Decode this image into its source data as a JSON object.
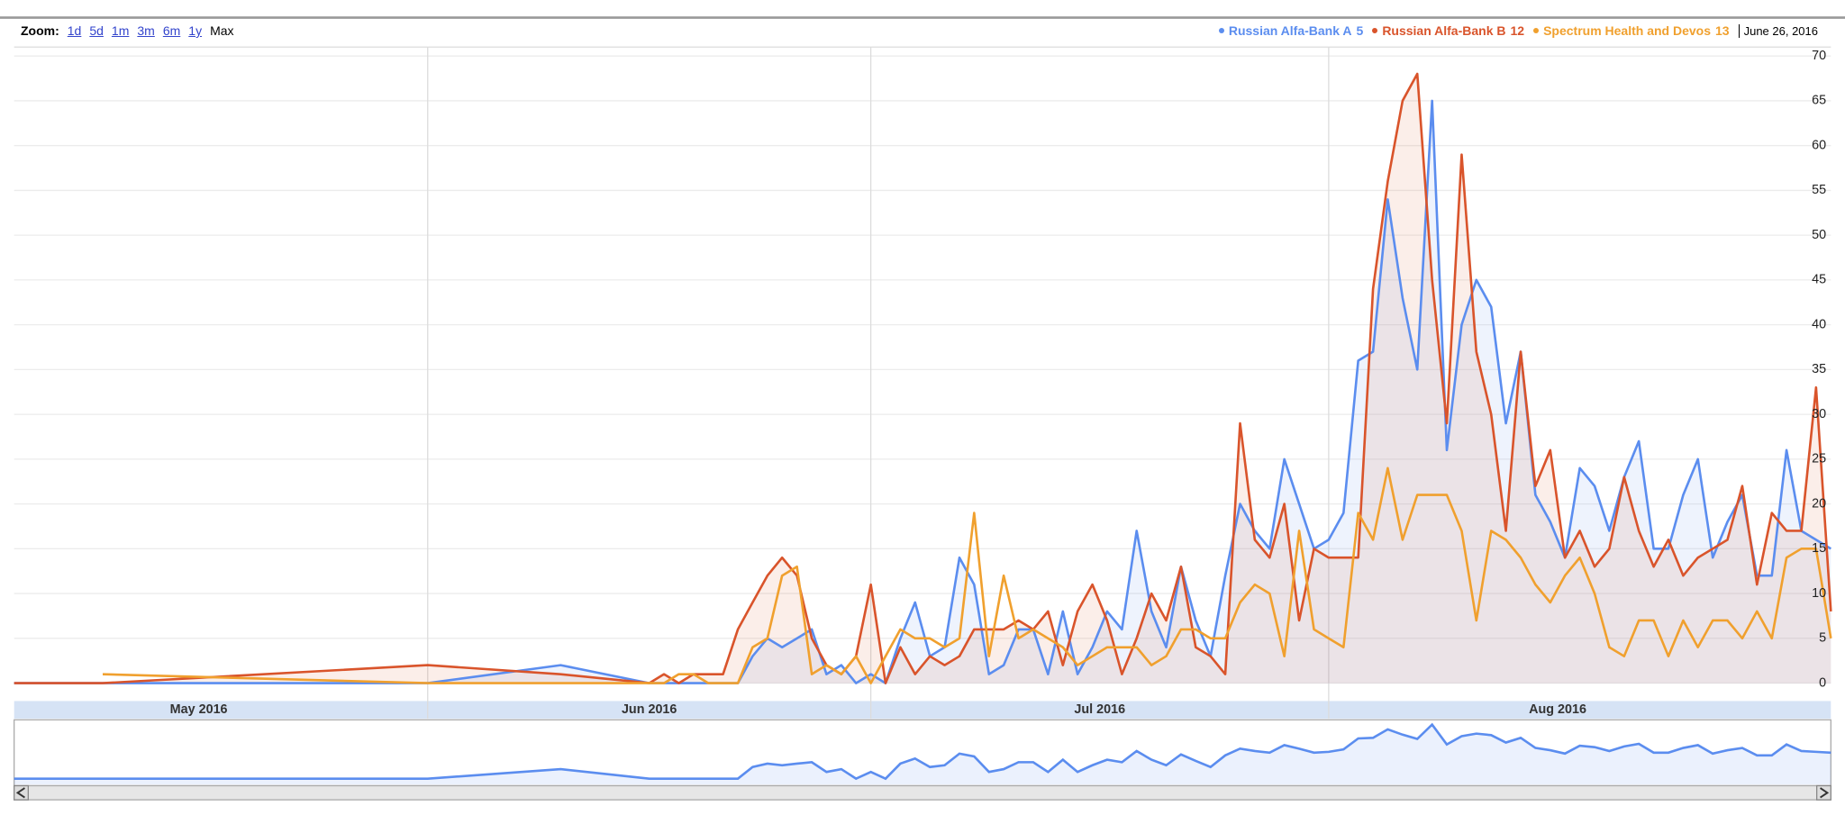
{
  "zoom": {
    "label": "Zoom:",
    "options": [
      "1d",
      "5d",
      "1m",
      "3m",
      "6m",
      "1y",
      "Max"
    ]
  },
  "chart_data": {
    "type": "line",
    "hover_date": "June 26, 2016",
    "x": [
      125,
      131,
      153,
      162,
      168,
      169,
      170,
      171,
      172,
      173,
      174,
      175,
      176,
      177,
      178,
      179,
      180,
      181,
      182,
      183,
      184,
      185,
      186,
      187,
      188,
      189,
      190,
      191,
      192,
      193,
      194,
      195,
      196,
      197,
      198,
      199,
      200,
      201,
      202,
      203,
      204,
      205,
      206,
      207,
      208,
      209,
      210,
      211,
      212,
      213,
      214,
      215,
      216,
      217,
      218,
      219,
      220,
      221,
      222,
      223,
      224,
      225,
      226,
      227,
      228,
      229,
      230,
      231,
      232,
      233,
      234,
      235,
      236,
      237,
      238,
      239,
      240,
      241,
      242,
      243,
      244,
      245,
      246,
      247,
      248
    ],
    "xlim": [
      125,
      248
    ],
    "xticks": [
      {
        "value": 122,
        "label": "May 2016"
      },
      {
        "value": 153,
        "label": "Jun 2016"
      },
      {
        "value": 183,
        "label": "Jul 2016"
      },
      {
        "value": 214,
        "label": "Aug 2016"
      }
    ],
    "ylim": [
      -2,
      71
    ],
    "yticks": [
      0,
      5,
      10,
      15,
      20,
      25,
      30,
      35,
      40,
      45,
      50,
      55,
      60,
      65,
      70
    ],
    "grid": true,
    "series": [
      {
        "name": "Russian Alfa-Bank A",
        "color": "#5b8def",
        "hover_value": 5,
        "fill": true,
        "values": [
          0,
          0,
          0,
          2,
          0,
          0,
          0,
          0,
          0,
          0,
          0,
          3,
          5,
          4,
          5,
          6,
          1,
          2,
          0,
          1,
          0,
          5,
          9,
          3,
          4,
          14,
          11,
          1,
          2,
          6,
          6,
          1,
          8,
          1,
          4,
          8,
          6,
          17,
          8,
          4,
          13,
          7,
          3,
          12,
          20,
          17,
          15,
          25,
          20,
          15,
          16,
          19,
          36,
          37,
          54,
          43,
          35,
          65,
          26,
          40,
          45,
          42,
          29,
          37,
          21,
          18,
          14,
          24,
          22,
          17,
          23,
          27,
          15,
          15,
          21,
          25,
          14,
          18,
          21,
          12,
          12,
          26,
          17,
          16,
          15
        ]
      },
      {
        "name": "Russian Alfa-Bank B",
        "color": "#d9542b",
        "hover_value": 12,
        "fill": true,
        "values": [
          0,
          0,
          2,
          1,
          0,
          1,
          0,
          1,
          1,
          1,
          6,
          9,
          12,
          14,
          12,
          5,
          2,
          1,
          3,
          11,
          0,
          4,
          1,
          3,
          2,
          3,
          6,
          6,
          6,
          7,
          6,
          8,
          2,
          8,
          11,
          7,
          1,
          5,
          10,
          7,
          13,
          4,
          3,
          1,
          29,
          16,
          14,
          20,
          7,
          15,
          14,
          14,
          14,
          44,
          56,
          65,
          68,
          45,
          29,
          59,
          37,
          30,
          17,
          37,
          22,
          26,
          14,
          17,
          13,
          15,
          23,
          17,
          13,
          16,
          12,
          14,
          15,
          16,
          22,
          11,
          19,
          17,
          17,
          33,
          8
        ]
      },
      {
        "name": "Spectrum Health and Devos",
        "color": "#f0a02e",
        "hover_value": 13,
        "fill": false,
        "values": [
          null,
          1,
          0,
          0,
          0,
          0,
          1,
          1,
          0,
          0,
          0,
          4,
          5,
          12,
          13,
          1,
          2,
          1,
          3,
          0,
          3,
          6,
          5,
          5,
          4,
          5,
          19,
          3,
          12,
          5,
          6,
          5,
          4,
          2,
          3,
          4,
          4,
          4,
          2,
          3,
          6,
          6,
          5,
          5,
          9,
          11,
          10,
          3,
          17,
          6,
          5,
          4,
          19,
          16,
          24,
          16,
          21,
          21,
          21,
          17,
          7,
          17,
          16,
          14,
          11,
          9,
          12,
          14,
          10,
          4,
          3,
          7,
          7,
          3,
          7,
          4,
          7,
          7,
          5,
          8,
          5,
          14,
          15,
          15,
          5
        ]
      }
    ]
  }
}
